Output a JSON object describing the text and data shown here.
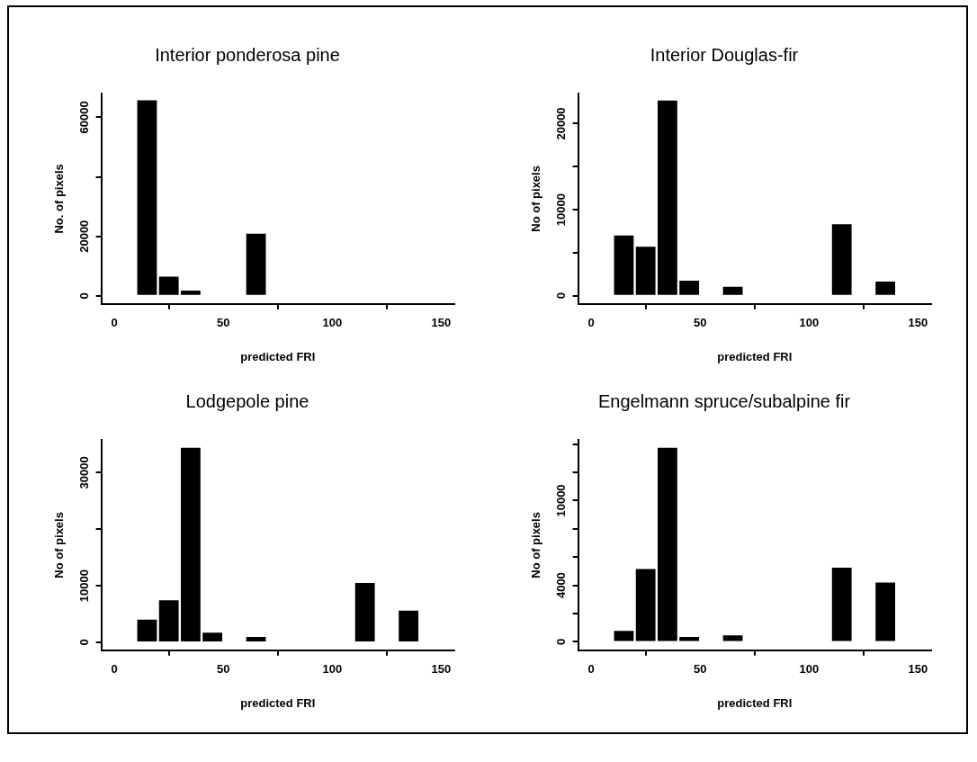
{
  "chart_data": [
    {
      "type": "bar",
      "title": "Interior ponderosa pine",
      "xlabel": "predicted FRI",
      "ylabel": "No. of pixels",
      "x": [
        15,
        25,
        35,
        65
      ],
      "values": [
        65700,
        6500,
        1800,
        20900
      ],
      "color": "#000000",
      "xlim": [
        -6,
        156
      ],
      "xticks": [
        0,
        50,
        100,
        150
      ],
      "ylim": [
        -2700,
        68000
      ],
      "yticks": [
        0,
        20000,
        {
          "value": 40000,
          "label": null
        },
        60000
      ],
      "grid": false
    },
    {
      "type": "bar",
      "title": "Interior Douglas-fir",
      "xlabel": "predicted FRI",
      "ylabel": "No of pixels",
      "x": [
        15,
        25,
        35,
        45,
        65,
        115,
        135
      ],
      "values": [
        7000,
        5700,
        22700,
        1750,
        1050,
        8300,
        1650
      ],
      "color": "#000000",
      "xlim": [
        -6,
        156
      ],
      "xticks": [
        0,
        50,
        100,
        150
      ],
      "ylim": [
        -950,
        23500
      ],
      "yticks": [
        0,
        {
          "value": 5000,
          "label": null
        },
        10000,
        {
          "value": 15000,
          "label": null
        },
        20000
      ],
      "grid": false
    },
    {
      "type": "bar",
      "title": "Lodgepole pine",
      "xlabel": "predicted FRI",
      "ylabel": "No of pixels",
      "x": [
        15,
        25,
        35,
        45,
        65,
        115,
        135
      ],
      "values": [
        4000,
        7450,
        34400,
        1700,
        950,
        10500,
        5600
      ],
      "color": "#000000",
      "xlim": [
        -6,
        156
      ],
      "xticks": [
        0,
        50,
        100,
        150
      ],
      "ylim": [
        -1400,
        35800
      ],
      "yticks": [
        0,
        10000,
        {
          "value": 20000,
          "label": null
        },
        30000
      ],
      "grid": false
    },
    {
      "type": "bar",
      "title": "Engelmann spruce/subalpine fir",
      "xlabel": "predicted FRI",
      "ylabel": "No of pixels",
      "x": [
        15,
        25,
        35,
        45,
        65,
        115,
        135
      ],
      "values": [
        770,
        5150,
        13750,
        350,
        450,
        5250,
        4200
      ],
      "color": "#000000",
      "xlim": [
        -6,
        156
      ],
      "xticks": [
        0,
        50,
        100,
        150
      ],
      "ylim": [
        -600,
        14300
      ],
      "yticks": [
        0,
        {
          "value": 2000,
          "label": null
        },
        4000,
        {
          "value": 6000,
          "label": null
        },
        {
          "value": 8000,
          "label": null
        },
        10000,
        {
          "value": 12000,
          "label": null
        },
        {
          "value": 14000,
          "label": null
        }
      ],
      "grid": false
    }
  ]
}
